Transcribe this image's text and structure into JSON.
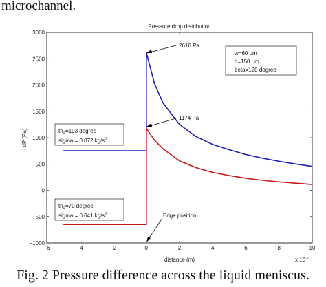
{
  "page": {
    "top_text": "microchannel.",
    "caption": "Fig. 2 Pressure difference across the liquid meniscus."
  },
  "chart_data": {
    "type": "line",
    "title": "Pressure drop distribution",
    "xlabel": "distance (m)",
    "ylabel": "dP (Pa)",
    "x_scale_label": "x 10",
    "x_scale_exponent": "-5",
    "xlim": [
      -6,
      10
    ],
    "ylim": [
      -1000,
      3000
    ],
    "x_ticks": [
      -6,
      -4,
      -2,
      0,
      2,
      4,
      6,
      8,
      10
    ],
    "x_tick_labels": [
      "−6",
      "−4",
      "−2",
      "0",
      "2",
      "4",
      "6",
      "8",
      "10"
    ],
    "y_ticks": [
      -1000,
      -500,
      0,
      500,
      1000,
      1500,
      2000,
      2500,
      3000
    ],
    "y_tick_labels": [
      "−1000",
      "−500",
      "0",
      "500",
      "1000",
      "1500",
      "2000",
      "2500",
      "3000"
    ],
    "grid": false,
    "series": [
      {
        "color": "#1f1fb4",
        "points": [
          [
            -5,
            750
          ],
          [
            0,
            750
          ],
          [
            0,
            2616
          ],
          [
            0.5,
            2020
          ],
          [
            1,
            1660
          ],
          [
            2,
            1250
          ],
          [
            3,
            1020
          ],
          [
            4,
            870
          ],
          [
            5,
            770
          ],
          [
            6,
            680
          ],
          [
            7,
            610
          ],
          [
            8,
            550
          ],
          [
            9,
            500
          ],
          [
            10,
            455
          ]
        ]
      },
      {
        "color": "#c41a1a",
        "points": [
          [
            -5,
            -650
          ],
          [
            0,
            -650
          ],
          [
            0,
            1174
          ],
          [
            0.5,
            950
          ],
          [
            1,
            790
          ],
          [
            2,
            560
          ],
          [
            3,
            430
          ],
          [
            4,
            340
          ],
          [
            5,
            280
          ],
          [
            6,
            230
          ],
          [
            7,
            190
          ],
          [
            8,
            160
          ],
          [
            9,
            135
          ],
          [
            10,
            110
          ]
        ]
      }
    ],
    "annotations": {
      "peak_high": {
        "text": "2616 Pa",
        "x": 0,
        "y": 2616
      },
      "peak_low": {
        "text": "1174 Pa",
        "x": 0,
        "y": 1174
      },
      "edge": {
        "text": "Edge position",
        "x": 0,
        "y": -1000
      }
    },
    "param_box": [
      "w=60 um",
      "h=150 um",
      "beta=120 degree"
    ],
    "box_upper": {
      "th_main": "th",
      "th_sub": "a",
      "th_rest": "=103 degree",
      "sigma": "sigma = 0.072 kg/s",
      "sigma_sup": "2"
    },
    "box_lower": {
      "th_main": "th",
      "th_sub": "a",
      "th_rest": "=70 degree",
      "sigma": "sigma = 0.041 kg/s",
      "sigma_sup": "2"
    }
  }
}
